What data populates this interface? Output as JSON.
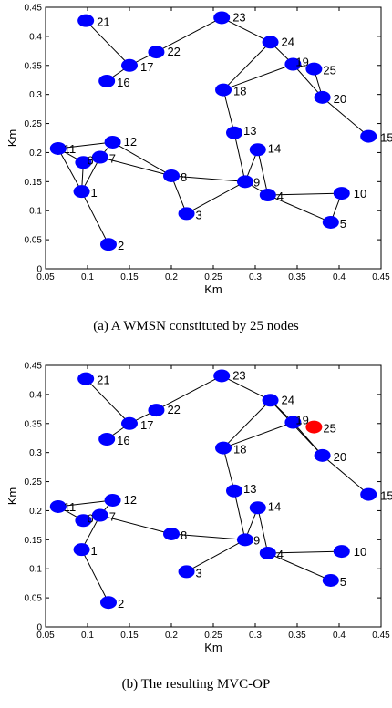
{
  "figures": [
    {
      "caption": "(a) A WMSN constituted by 25 nodes",
      "chart_data": {
        "type": "scatter",
        "xlabel": "Km",
        "ylabel": "Km",
        "xlim": [
          0.05,
          0.45
        ],
        "ylim": [
          0,
          0.45
        ],
        "xticks": [
          "0.05",
          "0.1",
          "0.15",
          "0.2",
          "0.25",
          "0.3",
          "0.35",
          "0.4",
          "0.45"
        ],
        "yticks": [
          "0",
          "0.05",
          "0.1",
          "0.15",
          "0.2",
          "0.25",
          "0.3",
          "0.35",
          "0.4",
          "0.45"
        ],
        "grid": false,
        "nodes": [
          {
            "id": "1",
            "x": 0.093,
            "y": 0.133,
            "color": "#0000ff"
          },
          {
            "id": "2",
            "x": 0.125,
            "y": 0.042,
            "color": "#0000ff"
          },
          {
            "id": "3",
            "x": 0.218,
            "y": 0.095,
            "color": "#0000ff"
          },
          {
            "id": "4",
            "x": 0.315,
            "y": 0.127,
            "color": "#0000ff"
          },
          {
            "id": "5",
            "x": 0.39,
            "y": 0.08,
            "color": "#0000ff"
          },
          {
            "id": "6",
            "x": 0.095,
            "y": 0.183,
            "color": "#0000ff"
          },
          {
            "id": "7",
            "x": 0.115,
            "y": 0.192,
            "color": "#0000ff"
          },
          {
            "id": "8",
            "x": 0.2,
            "y": 0.16,
            "color": "#0000ff"
          },
          {
            "id": "9",
            "x": 0.288,
            "y": 0.15,
            "color": "#0000ff"
          },
          {
            "id": "10",
            "x": 0.403,
            "y": 0.13,
            "color": "#0000ff"
          },
          {
            "id": "11",
            "x": 0.065,
            "y": 0.207,
            "color": "#0000ff"
          },
          {
            "id": "12",
            "x": 0.13,
            "y": 0.218,
            "color": "#0000ff"
          },
          {
            "id": "13",
            "x": 0.275,
            "y": 0.234,
            "color": "#0000ff"
          },
          {
            "id": "14",
            "x": 0.303,
            "y": 0.205,
            "color": "#0000ff"
          },
          {
            "id": "15",
            "x": 0.435,
            "y": 0.228,
            "color": "#0000ff"
          },
          {
            "id": "16",
            "x": 0.123,
            "y": 0.323,
            "color": "#0000ff"
          },
          {
            "id": "17",
            "x": 0.15,
            "y": 0.35,
            "color": "#0000ff"
          },
          {
            "id": "18",
            "x": 0.262,
            "y": 0.308,
            "color": "#0000ff"
          },
          {
            "id": "19",
            "x": 0.345,
            "y": 0.352,
            "color": "#0000ff"
          },
          {
            "id": "20",
            "x": 0.38,
            "y": 0.295,
            "color": "#0000ff"
          },
          {
            "id": "21",
            "x": 0.098,
            "y": 0.427,
            "color": "#0000ff"
          },
          {
            "id": "22",
            "x": 0.182,
            "y": 0.373,
            "color": "#0000ff"
          },
          {
            "id": "23",
            "x": 0.26,
            "y": 0.432,
            "color": "#0000ff"
          },
          {
            "id": "24",
            "x": 0.318,
            "y": 0.39,
            "color": "#0000ff"
          },
          {
            "id": "25",
            "x": 0.37,
            "y": 0.344,
            "color": "#0000ff"
          }
        ],
        "edges": [
          [
            "21",
            "17"
          ],
          [
            "16",
            "17"
          ],
          [
            "17",
            "22"
          ],
          [
            "22",
            "23"
          ],
          [
            "23",
            "24"
          ],
          [
            "24",
            "19"
          ],
          [
            "24",
            "18"
          ],
          [
            "19",
            "18"
          ],
          [
            "19",
            "25"
          ],
          [
            "19",
            "20"
          ],
          [
            "25",
            "20"
          ],
          [
            "20",
            "15"
          ],
          [
            "18",
            "13"
          ],
          [
            "13",
            "9"
          ],
          [
            "14",
            "9"
          ],
          [
            "14",
            "4"
          ],
          [
            "9",
            "4"
          ],
          [
            "4",
            "10"
          ],
          [
            "4",
            "5"
          ],
          [
            "10",
            "5"
          ],
          [
            "9",
            "8"
          ],
          [
            "9",
            "3"
          ],
          [
            "8",
            "3"
          ],
          [
            "8",
            "7"
          ],
          [
            "8",
            "12"
          ],
          [
            "12",
            "11"
          ],
          [
            "12",
            "7"
          ],
          [
            "11",
            "6"
          ],
          [
            "11",
            "1"
          ],
          [
            "6",
            "1"
          ],
          [
            "7",
            "6"
          ],
          [
            "7",
            "1"
          ],
          [
            "1",
            "2"
          ]
        ]
      }
    },
    {
      "caption": "(b) The resulting MVC-OP",
      "chart_data": {
        "type": "scatter",
        "xlabel": "Km",
        "ylabel": "Km",
        "xlim": [
          0.05,
          0.45
        ],
        "ylim": [
          0,
          0.45
        ],
        "xticks": [
          "0.05",
          "0.1",
          "0.15",
          "0.2",
          "0.25",
          "0.3",
          "0.35",
          "0.4",
          "0.45"
        ],
        "yticks": [
          "0",
          "0.05",
          "0.1",
          "0.15",
          "0.2",
          "0.25",
          "0.3",
          "0.35",
          "0.4",
          "0.45"
        ],
        "grid": false,
        "nodes": [
          {
            "id": "1",
            "x": 0.093,
            "y": 0.133,
            "color": "#0000ff"
          },
          {
            "id": "2",
            "x": 0.125,
            "y": 0.042,
            "color": "#0000ff"
          },
          {
            "id": "3",
            "x": 0.218,
            "y": 0.095,
            "color": "#0000ff"
          },
          {
            "id": "4",
            "x": 0.315,
            "y": 0.127,
            "color": "#0000ff"
          },
          {
            "id": "5",
            "x": 0.39,
            "y": 0.08,
            "color": "#0000ff"
          },
          {
            "id": "6",
            "x": 0.095,
            "y": 0.183,
            "color": "#0000ff"
          },
          {
            "id": "7",
            "x": 0.115,
            "y": 0.192,
            "color": "#0000ff"
          },
          {
            "id": "8",
            "x": 0.2,
            "y": 0.16,
            "color": "#0000ff"
          },
          {
            "id": "9",
            "x": 0.288,
            "y": 0.15,
            "color": "#0000ff"
          },
          {
            "id": "10",
            "x": 0.403,
            "y": 0.13,
            "color": "#0000ff"
          },
          {
            "id": "11",
            "x": 0.065,
            "y": 0.207,
            "color": "#0000ff"
          },
          {
            "id": "12",
            "x": 0.13,
            "y": 0.218,
            "color": "#0000ff"
          },
          {
            "id": "13",
            "x": 0.275,
            "y": 0.234,
            "color": "#0000ff"
          },
          {
            "id": "14",
            "x": 0.303,
            "y": 0.205,
            "color": "#0000ff"
          },
          {
            "id": "15",
            "x": 0.435,
            "y": 0.228,
            "color": "#0000ff"
          },
          {
            "id": "16",
            "x": 0.123,
            "y": 0.323,
            "color": "#0000ff"
          },
          {
            "id": "17",
            "x": 0.15,
            "y": 0.35,
            "color": "#0000ff"
          },
          {
            "id": "18",
            "x": 0.262,
            "y": 0.308,
            "color": "#0000ff"
          },
          {
            "id": "19",
            "x": 0.345,
            "y": 0.352,
            "color": "#0000ff"
          },
          {
            "id": "20",
            "x": 0.38,
            "y": 0.295,
            "color": "#0000ff"
          },
          {
            "id": "21",
            "x": 0.098,
            "y": 0.427,
            "color": "#0000ff"
          },
          {
            "id": "22",
            "x": 0.182,
            "y": 0.373,
            "color": "#0000ff"
          },
          {
            "id": "23",
            "x": 0.26,
            "y": 0.432,
            "color": "#0000ff"
          },
          {
            "id": "24",
            "x": 0.318,
            "y": 0.39,
            "color": "#0000ff"
          },
          {
            "id": "25",
            "x": 0.37,
            "y": 0.344,
            "color": "#ff0000"
          }
        ],
        "edges": [
          [
            "21",
            "17"
          ],
          [
            "16",
            "17"
          ],
          [
            "17",
            "22"
          ],
          [
            "22",
            "23"
          ],
          [
            "23",
            "24"
          ],
          [
            "24",
            "19"
          ],
          [
            "24",
            "18"
          ],
          [
            "19",
            "18"
          ],
          [
            "24",
            "20"
          ],
          [
            "19",
            "20"
          ],
          [
            "20",
            "15"
          ],
          [
            "18",
            "13"
          ],
          [
            "13",
            "9"
          ],
          [
            "14",
            "9"
          ],
          [
            "14",
            "4"
          ],
          [
            "4",
            "10"
          ],
          [
            "4",
            "5"
          ],
          [
            "9",
            "8"
          ],
          [
            "9",
            "3"
          ],
          [
            "8",
            "7"
          ],
          [
            "12",
            "11"
          ],
          [
            "12",
            "7"
          ],
          [
            "11",
            "6"
          ],
          [
            "7",
            "6"
          ],
          [
            "7",
            "1"
          ],
          [
            "1",
            "2"
          ]
        ]
      }
    }
  ]
}
